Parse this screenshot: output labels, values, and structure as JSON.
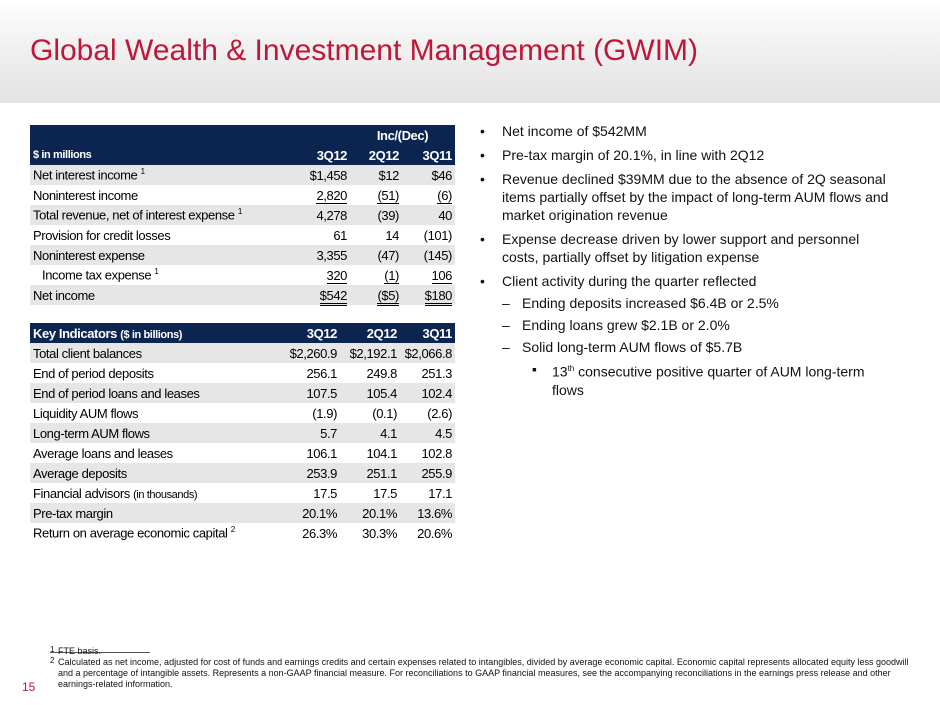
{
  "title": "Global Wealth & Investment Management (GWIM)",
  "page_number": "15",
  "income_table": {
    "group_header": "Inc/(Dec)",
    "unit_label": "$ in millions",
    "columns": [
      "3Q12",
      "2Q12",
      "3Q11"
    ],
    "rows": [
      {
        "label": "Net interest income",
        "sup": "1",
        "values": [
          "$1,458",
          "$12",
          "$46"
        ]
      },
      {
        "label": "Noninterest income",
        "values": [
          "2,820",
          "(51)",
          "(6)"
        ]
      },
      {
        "label": "Total revenue, net of interest expense",
        "sup": "1",
        "values": [
          "4,278",
          "(39)",
          "40"
        ]
      },
      {
        "label": "Provision for credit losses",
        "values": [
          "61",
          "14",
          "(101)"
        ]
      },
      {
        "label": "Noninterest expense",
        "values": [
          "3,355",
          "(47)",
          "(145)"
        ]
      },
      {
        "label": "Income tax expense",
        "sup": "1",
        "values": [
          "320",
          "(1)",
          "106"
        ]
      },
      {
        "label": "Net income",
        "values": [
          "$542",
          "($5)",
          "$180"
        ]
      }
    ]
  },
  "indicators_table": {
    "title": "Key Indicators",
    "unit_label": "($ in billions)",
    "columns": [
      "3Q12",
      "2Q12",
      "3Q11"
    ],
    "rows": [
      {
        "label": "Total client balances",
        "values": [
          "$2,260.9",
          "$2,192.1",
          "$2,066.8"
        ]
      },
      {
        "label": "End of period deposits",
        "values": [
          "256.1",
          "249.8",
          "251.3"
        ]
      },
      {
        "label": "End of period loans and leases",
        "values": [
          "107.5",
          "105.4",
          "102.4"
        ]
      },
      {
        "label": "Liquidity AUM flows",
        "values": [
          "(1.9)",
          "(0.1)",
          "(2.6)"
        ]
      },
      {
        "label": "Long-term AUM flows",
        "values": [
          "5.7",
          "4.1",
          "4.5"
        ]
      },
      {
        "label": "Average loans and leases",
        "values": [
          "106.1",
          "104.1",
          "102.8"
        ]
      },
      {
        "label": "Average deposits",
        "values": [
          "253.9",
          "251.1",
          "255.9"
        ]
      },
      {
        "label": "Financial advisors",
        "note": "(in thousands)",
        "values": [
          "17.5",
          "17.5",
          "17.1"
        ]
      },
      {
        "label": "Pre-tax margin",
        "values": [
          "20.1%",
          "20.1%",
          "13.6%"
        ]
      },
      {
        "label": "Return on average economic capital",
        "sup": "2",
        "values": [
          "26.3%",
          "30.3%",
          "20.6%"
        ]
      }
    ]
  },
  "bullets": [
    {
      "level": 1,
      "text": "Net income of $542MM"
    },
    {
      "level": 1,
      "text": "Pre-tax margin of 20.1%, in line with 2Q12"
    },
    {
      "level": 1,
      "text": "Revenue declined $39MM due to the absence of 2Q seasonal items partially offset by the impact of long-term AUM flows and market origination revenue"
    },
    {
      "level": 1,
      "text": "Expense decrease driven by lower support and personnel costs, partially offset by litigation expense"
    },
    {
      "level": 1,
      "text": "Client activity during the quarter reflected"
    },
    {
      "level": 2,
      "text": "Ending deposits increased $6.4B or 2.5%"
    },
    {
      "level": 2,
      "text": "Ending loans grew $2.1B or 2.0%"
    },
    {
      "level": 2,
      "text": "Solid long-term AUM flows of $5.7B"
    },
    {
      "level": 3,
      "pre": "13",
      "sup": "th",
      "text": "consecutive positive quarter of AUM long-term flows"
    }
  ],
  "footnotes": [
    {
      "mark": "1",
      "text": "FTE basis."
    },
    {
      "mark": "2",
      "text": "Calculated as net income, adjusted for cost of funds and earnings credits and certain expenses related to intangibles, divided by average economic capital. Economic capital represents allocated equity less goodwill and a percentage of intangible assets. Represents a non-GAAP financial measure. For reconciliations to GAAP financial measures, see the accompanying reconciliations in the earnings press release and other earnings-related information."
    }
  ]
}
